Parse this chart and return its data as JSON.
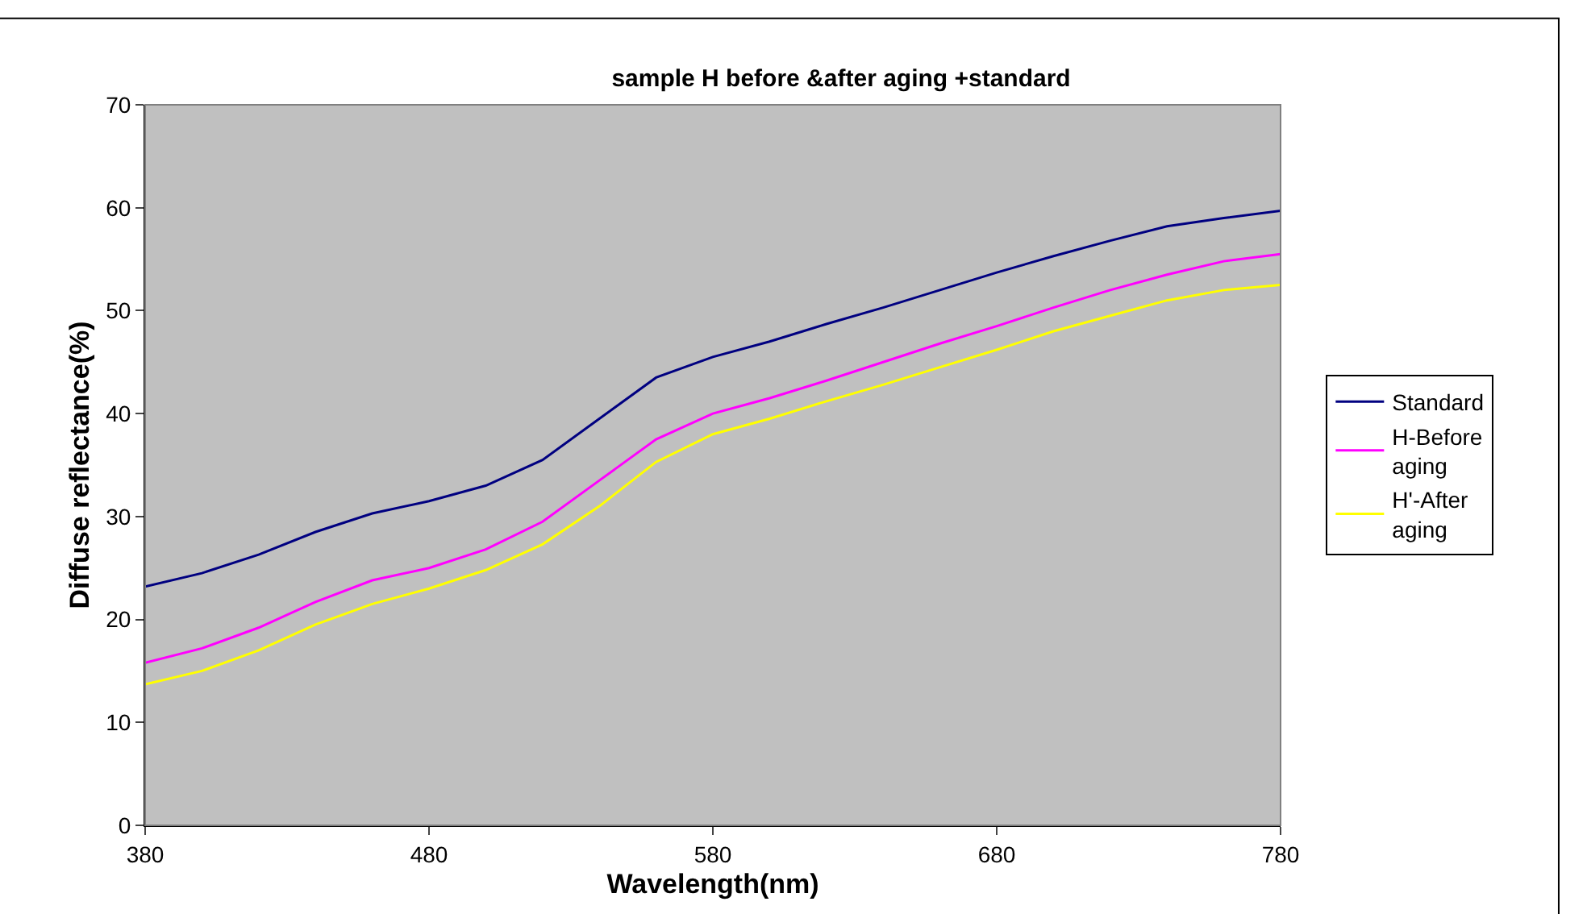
{
  "chart_data": {
    "type": "line",
    "title": "sample H before &after aging +standard",
    "xlabel": "Wavelength(nm)",
    "ylabel": "Diffuse reflectance(%)",
    "x": [
      380,
      400,
      420,
      440,
      460,
      480,
      500,
      520,
      540,
      560,
      580,
      600,
      620,
      640,
      660,
      680,
      700,
      720,
      740,
      760,
      780
    ],
    "series": [
      {
        "name": "Standard",
        "color": "#000080",
        "values": [
          23.2,
          24.5,
          26.3,
          28.5,
          30.3,
          31.5,
          33.0,
          35.5,
          39.5,
          43.5,
          45.5,
          47.0,
          48.7,
          50.3,
          52.0,
          53.7,
          55.3,
          56.8,
          58.2,
          59.0,
          59.7
        ]
      },
      {
        "name": "H-Before aging",
        "color": "#ff00ff",
        "values": [
          15.8,
          17.2,
          19.2,
          21.7,
          23.8,
          25.0,
          26.8,
          29.5,
          33.5,
          37.5,
          40.0,
          41.5,
          43.2,
          45.0,
          46.8,
          48.5,
          50.3,
          52.0,
          53.5,
          54.8,
          55.5
        ]
      },
      {
        "name": "H'-After aging",
        "color": "#ffff00",
        "values": [
          13.7,
          15.0,
          17.0,
          19.5,
          21.5,
          23.0,
          24.8,
          27.3,
          31.0,
          35.3,
          38.0,
          39.5,
          41.2,
          42.8,
          44.5,
          46.2,
          48.0,
          49.5,
          51.0,
          52.0,
          52.5
        ]
      }
    ],
    "xlim": [
      380,
      780
    ],
    "xticks": [
      380,
      480,
      580,
      680,
      780
    ],
    "ylim": [
      0,
      70
    ],
    "yticks": [
      0,
      10,
      20,
      30,
      40,
      50,
      60,
      70
    ],
    "grid": false,
    "legend": "right",
    "marker": "none",
    "line_style": "solid"
  }
}
